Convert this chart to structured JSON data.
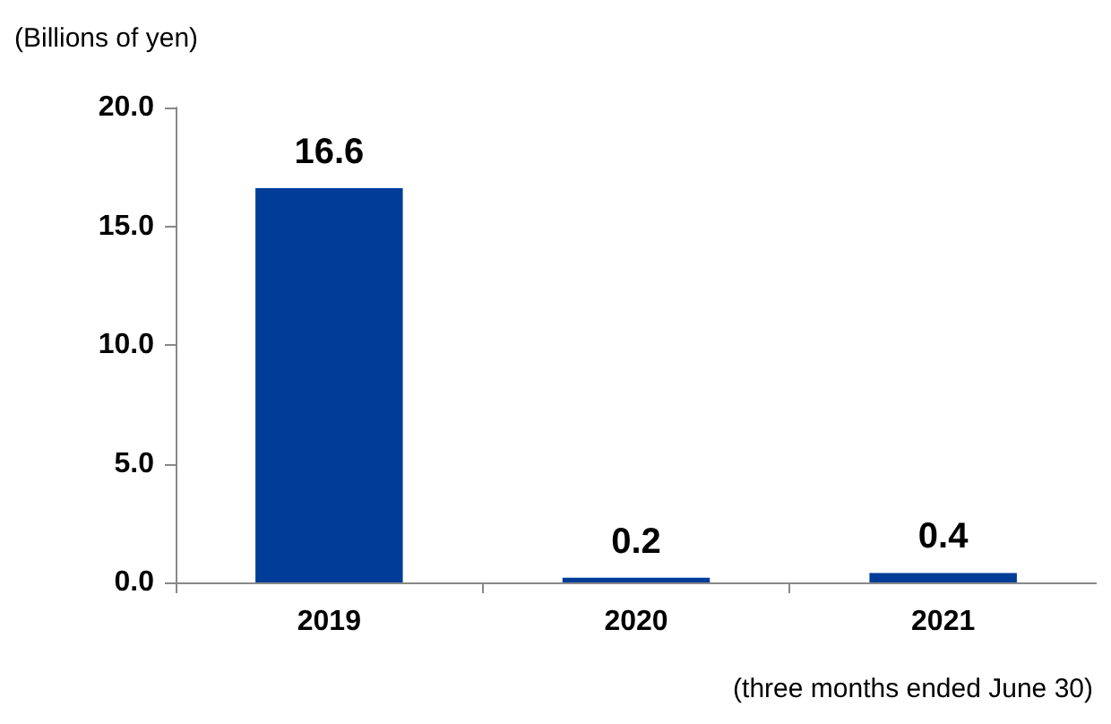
{
  "chart_data": {
    "type": "bar",
    "ylabel": "(Billions of yen)",
    "categories": [
      "2019",
      "2020",
      "2021"
    ],
    "values": [
      16.6,
      0.2,
      0.4
    ],
    "value_labels": [
      "16.6",
      "0.2",
      "0.4"
    ],
    "color": "#003d99",
    "ylim": [
      0,
      20
    ],
    "yticks": [
      {
        "value": 0,
        "label": "0.0"
      },
      {
        "value": 5,
        "label": "5.0"
      },
      {
        "value": 10,
        "label": "10.0"
      },
      {
        "value": 15,
        "label": "15.0"
      },
      {
        "value": 20,
        "label": "20.0"
      }
    ],
    "grid": false,
    "annotations": [
      "(three months ended June 30)"
    ]
  }
}
